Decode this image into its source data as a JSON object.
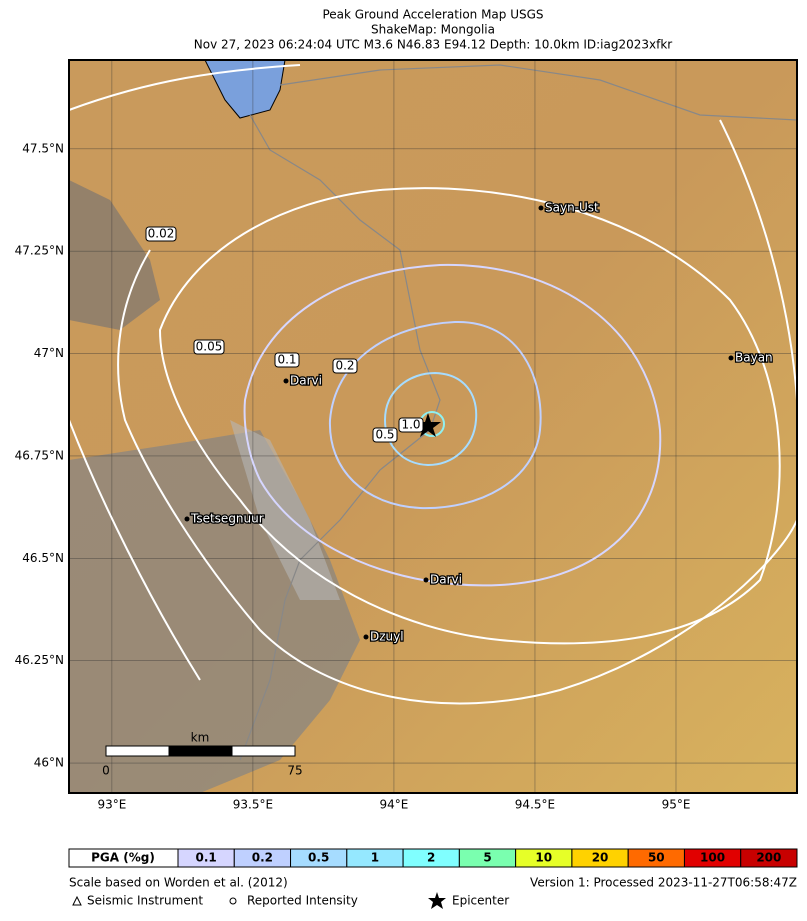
{
  "title": {
    "lines": [
      "Peak Ground Acceleration Map USGS",
      "ShakeMap:  Mongolia",
      "Nov 27, 2023 06:24:04 UTC M3.6 N46.83 E94.12 Depth: 10.0km ID:iag2023xfkr"
    ]
  },
  "map": {
    "xlim": [
      92.848,
      95.429
    ],
    "ylim": [
      45.927,
      47.717
    ],
    "xticks": [
      {
        "value": 93,
        "label": "93°E"
      },
      {
        "value": 93.5,
        "label": "93.5°E"
      },
      {
        "value": 94,
        "label": "94°E"
      },
      {
        "value": 94.5,
        "label": "94.5°E"
      },
      {
        "value": 95,
        "label": "95°E"
      }
    ],
    "yticks": [
      {
        "value": 46,
        "label": "46°N"
      },
      {
        "value": 46.25,
        "label": "46.25°N"
      },
      {
        "value": 46.5,
        "label": "46.5°N"
      },
      {
        "value": 46.75,
        "label": "46.75°N"
      },
      {
        "value": 47,
        "label": "47°N"
      },
      {
        "value": 47.25,
        "label": "47.25°N"
      },
      {
        "value": 47.5,
        "label": "47.5°N"
      }
    ],
    "cities": [
      "Sayn-Ust",
      "Bayan",
      "Darvi",
      "Tsetsegnuur",
      "Darvi",
      "Dzuyl"
    ],
    "contour_labels": [
      "0.02",
      "0.05",
      "0.1",
      "0.2",
      "0.5",
      "1.0"
    ],
    "scale_bar": {
      "unit": "km",
      "start": 0,
      "end": 75
    }
  },
  "legend": {
    "header": "PGA (%g)",
    "bins": [
      {
        "label": "0.1",
        "color": "#d6d6ff"
      },
      {
        "label": "0.2",
        "color": "#bfd0ff"
      },
      {
        "label": "0.5",
        "color": "#a6dcff"
      },
      {
        "label": "1",
        "color": "#95e8ff"
      },
      {
        "label": "2",
        "color": "#80ffff"
      },
      {
        "label": "5",
        "color": "#7affaf"
      },
      {
        "label": "10",
        "color": "#e6ff28"
      },
      {
        "label": "20",
        "color": "#ffd200"
      },
      {
        "label": "50",
        "color": "#ff6a00"
      },
      {
        "label": "100",
        "color": "#e10000"
      },
      {
        "label": "200",
        "color": "#c80000"
      }
    ]
  },
  "footer": {
    "reference": "Scale based on Worden et al. (2012)",
    "version": "Version 1: Processed 2023-11-27T06:58:47Z",
    "seismic_instrument": "Seismic Instrument",
    "reported_intensity": "Reported Intensity",
    "epicenter": "Epicenter"
  }
}
